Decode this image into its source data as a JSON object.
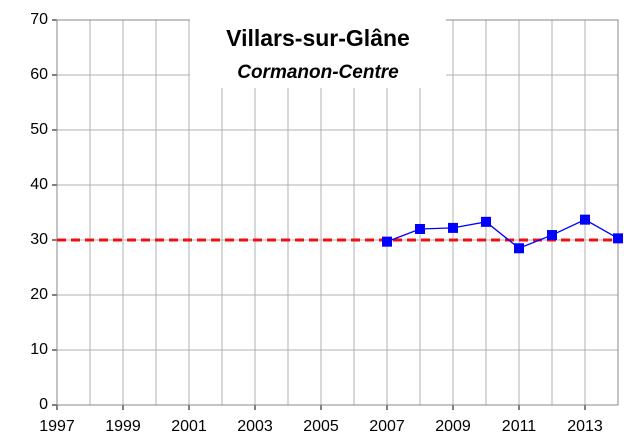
{
  "chart_data": {
    "type": "line",
    "title": "Villars-sur-Glâne",
    "subtitle": "Cormanon-Centre",
    "x": [
      2007,
      2008,
      2009,
      2010,
      2011,
      2012,
      2013,
      2014
    ],
    "series": [
      {
        "color": "#0000ff",
        "values": [
          29.7,
          32.0,
          32.2,
          33.3,
          28.5,
          30.9,
          33.7,
          30.3
        ]
      }
    ],
    "xlim": [
      1997,
      2014
    ],
    "xticks": [
      1997,
      1999,
      2001,
      2003,
      2005,
      2007,
      2009,
      2011,
      2013
    ],
    "xgrid": [
      1997,
      1998,
      1999,
      2000,
      2001,
      2002,
      2003,
      2004,
      2005,
      2006,
      2007,
      2008,
      2009,
      2010,
      2011,
      2012,
      2013,
      2014
    ],
    "ylim": [
      0,
      70
    ],
    "yticks": [
      0,
      10,
      20,
      30,
      40,
      50,
      60,
      70
    ],
    "grid": true,
    "reference_line": {
      "value": 30,
      "color": "#ee1111"
    }
  }
}
